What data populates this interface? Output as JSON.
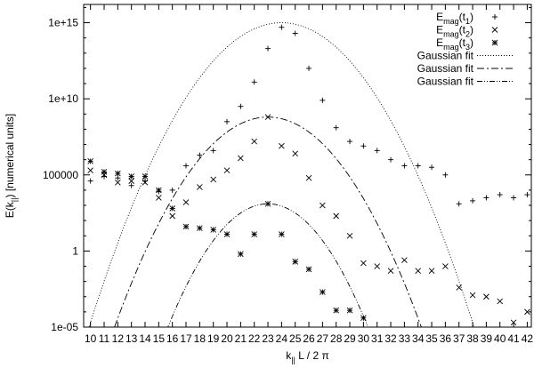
{
  "chart_data": {
    "type": "scatter",
    "title": "",
    "xlabel": {
      "pre": "k",
      "sub": "||",
      "post": " L / 2 π"
    },
    "ylabel": {
      "pre": "E(k",
      "sub": "||",
      "post": ") [numerical units]"
    },
    "xlim": [
      9.5,
      42.3
    ],
    "ylim_log10": [
      -5,
      16.2
    ],
    "y_scale": "log",
    "xticks": [
      10,
      11,
      12,
      13,
      14,
      15,
      16,
      17,
      18,
      19,
      20,
      21,
      22,
      23,
      24,
      25,
      26,
      27,
      28,
      29,
      30,
      31,
      32,
      33,
      34,
      35,
      36,
      37,
      38,
      39,
      40,
      41,
      42
    ],
    "yticks": [
      {
        "label": "1e-05",
        "log10": -5
      },
      {
        "label": "1",
        "log10": 0
      },
      {
        "label": "100000",
        "log10": 5
      },
      {
        "label": "1e+10",
        "log10": 10
      },
      {
        "label": "1e+15",
        "log10": 15
      }
    ],
    "legend_position": "top-right",
    "legend": [
      {
        "kind": "marker",
        "marker": "plus",
        "label": {
          "pre": "E",
          "sub": "mag",
          "post": "(t",
          "sub2": "1",
          "end": ")"
        }
      },
      {
        "kind": "marker",
        "marker": "cross",
        "label": {
          "pre": "E",
          "sub": "mag",
          "post": "(t",
          "sub2": "2",
          "end": ")"
        }
      },
      {
        "kind": "marker",
        "marker": "star",
        "label": {
          "pre": "E",
          "sub": "mag",
          "post": "(t",
          "sub2": "3",
          "end": ")"
        }
      },
      {
        "kind": "line",
        "dash": "1,2",
        "label": {
          "pre": "Gaussian fit"
        }
      },
      {
        "kind": "line",
        "dash": "8,3,2,3",
        "label": {
          "pre": "Gaussian fit"
        }
      },
      {
        "kind": "line",
        "dash": "6,2,1,2,1,2",
        "label": {
          "pre": "Gaussian fit"
        }
      }
    ],
    "series": [
      {
        "marker": "plus",
        "points": [
          [
            10,
            4.6
          ],
          [
            11,
            4.9
          ],
          [
            12,
            4.8
          ],
          [
            13,
            4.3
          ],
          [
            14,
            4.6
          ],
          [
            15,
            3.9
          ],
          [
            16,
            4.0
          ],
          [
            17,
            5.6
          ],
          [
            18,
            6.3
          ],
          [
            19,
            6.6
          ],
          [
            20,
            8.5
          ],
          [
            21,
            9.5
          ],
          [
            22,
            11.1
          ],
          [
            23,
            13.3
          ],
          [
            24,
            14.7
          ],
          [
            25,
            14.3
          ],
          [
            26,
            12.0
          ],
          [
            27,
            9.9
          ],
          [
            28,
            8.1
          ],
          [
            29,
            7.2
          ],
          [
            30,
            6.9
          ],
          [
            31,
            6.6
          ],
          [
            32,
            6.0
          ],
          [
            33,
            5.6
          ],
          [
            34,
            5.6
          ],
          [
            35,
            5.5
          ],
          [
            36,
            5.0
          ],
          [
            37,
            3.1
          ],
          [
            38,
            3.3
          ],
          [
            39,
            3.5
          ],
          [
            40,
            3.7
          ],
          [
            41,
            3.5
          ],
          [
            42,
            3.7
          ]
        ]
      },
      {
        "marker": "cross",
        "points": [
          [
            10,
            5.3
          ],
          [
            11,
            5.0
          ],
          [
            12,
            4.5
          ],
          [
            13,
            4.6
          ],
          [
            14,
            4.5
          ],
          [
            15,
            3.5
          ],
          [
            16,
            2.3
          ],
          [
            17,
            3.2
          ],
          [
            18,
            4.2
          ],
          [
            19,
            4.7
          ],
          [
            20,
            5.3
          ],
          [
            21,
            6.1
          ],
          [
            22,
            7.2
          ],
          [
            23,
            8.8
          ],
          [
            24,
            6.9
          ],
          [
            25,
            6.4
          ],
          [
            26,
            4.8
          ],
          [
            27,
            3.0
          ],
          [
            28,
            2.3
          ],
          [
            29,
            1.0
          ],
          [
            30,
            -0.8
          ],
          [
            31,
            -1.0
          ],
          [
            32,
            -1.3
          ],
          [
            33,
            -0.6
          ],
          [
            34,
            -1.3
          ],
          [
            35,
            -1.3
          ],
          [
            36,
            -1.0
          ],
          [
            37,
            -2.4
          ],
          [
            38,
            -2.9
          ],
          [
            39,
            -3.0
          ],
          [
            40,
            -3.3
          ],
          [
            41,
            -4.7
          ],
          [
            42,
            -4.0
          ]
        ]
      },
      {
        "marker": "star",
        "points": [
          [
            10,
            5.9
          ],
          [
            11,
            5.2
          ],
          [
            12,
            5.1
          ],
          [
            13,
            4.9
          ],
          [
            14,
            4.9
          ],
          [
            15,
            4.0
          ],
          [
            16,
            2.8
          ],
          [
            17,
            1.6
          ],
          [
            18,
            1.5
          ],
          [
            19,
            1.4
          ],
          [
            20,
            1.1
          ],
          [
            21,
            -0.2
          ],
          [
            22,
            1.1
          ],
          [
            23,
            3.1
          ],
          [
            24,
            1.1
          ],
          [
            25,
            -0.7
          ],
          [
            26,
            -1.2
          ],
          [
            27,
            -2.7
          ],
          [
            28,
            -3.9
          ],
          [
            29,
            -3.9
          ],
          [
            30,
            -4.4
          ]
        ]
      }
    ],
    "fits": [
      {
        "dash": "1,2",
        "peak_x": 24.0,
        "peak_log10": 15.0,
        "sigma": 1.47
      },
      {
        "dash": "8,3,2,3",
        "peak_x": 23.0,
        "peak_log10": 8.8,
        "sigma": 1.41
      },
      {
        "dash": "6,2,1,2,1,2",
        "peak_x": 23.0,
        "peak_log10": 3.1,
        "sigma": 1.2
      }
    ]
  }
}
